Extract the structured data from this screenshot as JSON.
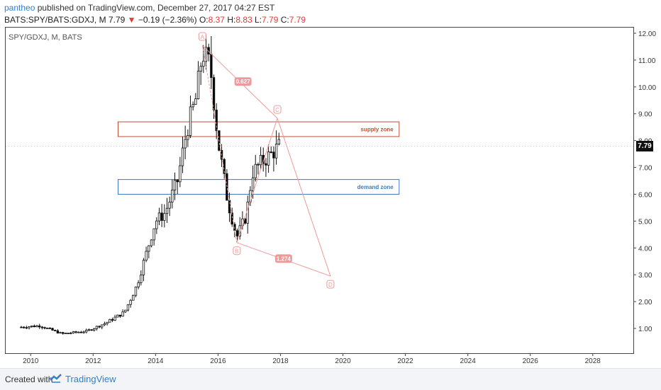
{
  "header": {
    "user": "pantheo",
    "published": "published on TradingView.com, December 27, 2017 04:27 EST",
    "symbol": "BATS:SPY/BATS:GDXJ, M",
    "last": "7.79",
    "change_arrow": "▼",
    "change": "−0.19 (−2.36%)",
    "o_label": "O:",
    "o_val": "8.37",
    "h_label": "H:",
    "h_val": "8.83",
    "l_label": "L:",
    "l_val": "7.79",
    "c_label": "C:",
    "c_val": "7.79"
  },
  "legend_text": "SPY/GDXJ, M, BATS",
  "footer": {
    "created_with": "Created with",
    "brand": "TradingView"
  },
  "colors": {
    "candle_up": "#ffffff",
    "candle_down": "#000000",
    "pattern": "#ef9a9a",
    "supply": "#c0503a",
    "demand": "#3d7bbf",
    "accent": "#2f7ed8"
  },
  "chart_data": {
    "type": "candlestick",
    "last_price_label": "7.79",
    "y_ticks": [
      "12.00",
      "11.00",
      "10.00",
      "9.00",
      "8.00",
      "7.00",
      "6.00",
      "5.00",
      "4.00",
      "3.00",
      "2.00",
      "1.00"
    ],
    "x_ticks": [
      "2010",
      "2012",
      "2014",
      "2016",
      "2018",
      "2020",
      "2022",
      "2024",
      "2026",
      "2028"
    ],
    "ylim": [
      0,
      12.1
    ],
    "xlim": [
      2009.2,
      2029.3
    ],
    "zones": [
      {
        "name": "supply zone",
        "from": 8.15,
        "to": 8.7,
        "x_start": 2012.8,
        "x_end": 2021.8
      },
      {
        "name": "demand zone",
        "from": 6.0,
        "to": 6.55,
        "x_start": 2012.8,
        "x_end": 2021.8
      }
    ],
    "pattern_points": [
      {
        "label": "A",
        "x": 2015.5,
        "y": 11.55
      },
      {
        "label": "B",
        "x": 2016.6,
        "y": 4.2
      },
      {
        "label": "C",
        "x": 2017.9,
        "y": 8.83
      },
      {
        "label": "D",
        "x": 2019.6,
        "y": 2.95
      }
    ],
    "ratios": [
      {
        "label": "0.627",
        "x": 2016.8,
        "y": 10.2
      },
      {
        "label": "1.274",
        "x": 2018.1,
        "y": 3.6
      }
    ]
  }
}
